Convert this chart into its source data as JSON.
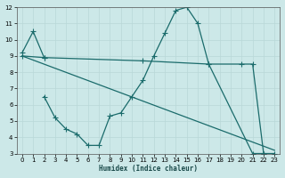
{
  "xlabel": "Humidex (Indice chaleur)",
  "background_color": "#cce8e8",
  "line_color": "#1a6b6b",
  "xlim": [
    -0.5,
    23.5
  ],
  "ylim": [
    3,
    12
  ],
  "yticks": [
    3,
    4,
    5,
    6,
    7,
    8,
    9,
    10,
    11,
    12
  ],
  "xticks": [
    0,
    1,
    2,
    3,
    4,
    5,
    6,
    7,
    8,
    9,
    10,
    11,
    12,
    13,
    14,
    15,
    16,
    17,
    18,
    19,
    20,
    21,
    22,
    23
  ],
  "line1": {
    "x": [
      0,
      1,
      2
    ],
    "y": [
      9.2,
      10.5,
      8.9
    ]
  },
  "line2": {
    "x": [
      0,
      2,
      11,
      17,
      20,
      21,
      22,
      23
    ],
    "y": [
      9.0,
      8.9,
      8.7,
      8.5,
      8.5,
      8.5,
      3.0,
      3.0
    ]
  },
  "line3": {
    "x": [
      0,
      23
    ],
    "y": [
      9.0,
      3.2
    ]
  },
  "line4": {
    "x": [
      2,
      3,
      4,
      5,
      6,
      7,
      8,
      9,
      10,
      11,
      12,
      13,
      14,
      15,
      16,
      17,
      21,
      22
    ],
    "y": [
      6.5,
      5.2,
      4.5,
      4.2,
      3.5,
      3.5,
      5.3,
      5.5,
      6.5,
      7.5,
      9.0,
      10.4,
      11.8,
      12.0,
      11.0,
      8.5,
      3.0,
      3.0
    ]
  }
}
